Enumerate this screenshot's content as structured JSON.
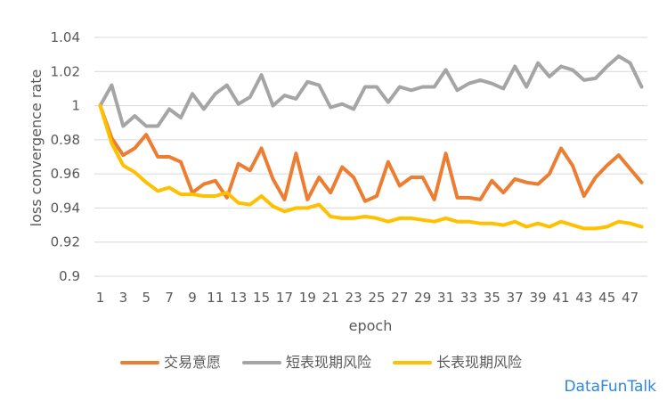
{
  "chart_data": {
    "type": "line",
    "xlabel": "epoch",
    "ylabel": "loss convergence rate",
    "ylim": [
      0.9,
      1.04
    ],
    "yticks": [
      "0.9",
      "0.92",
      "0.94",
      "0.96",
      "0.98",
      "1",
      "1.02",
      "1.04"
    ],
    "x": [
      1,
      2,
      3,
      4,
      5,
      6,
      7,
      8,
      9,
      10,
      11,
      12,
      13,
      14,
      15,
      16,
      17,
      18,
      19,
      20,
      21,
      22,
      23,
      24,
      25,
      26,
      27,
      28,
      29,
      30,
      31,
      32,
      33,
      34,
      35,
      36,
      37,
      38,
      39,
      40,
      41,
      42,
      43,
      44,
      45,
      46,
      47,
      48
    ],
    "xtick_labels": [
      "1",
      "3",
      "5",
      "7",
      "9",
      "11",
      "13",
      "15",
      "17",
      "19",
      "21",
      "23",
      "25",
      "27",
      "29",
      "31",
      "33",
      "35",
      "37",
      "39",
      "41",
      "43",
      "45",
      "47"
    ],
    "grid": true,
    "legend_position": "bottom",
    "series": [
      {
        "name": "交易意愿",
        "color": "#ed7d31",
        "values": [
          1.0,
          0.981,
          0.971,
          0.975,
          0.983,
          0.97,
          0.97,
          0.967,
          0.949,
          0.954,
          0.956,
          0.946,
          0.966,
          0.962,
          0.975,
          0.957,
          0.945,
          0.972,
          0.945,
          0.958,
          0.949,
          0.964,
          0.958,
          0.944,
          0.947,
          0.967,
          0.953,
          0.958,
          0.958,
          0.945,
          0.972,
          0.946,
          0.946,
          0.945,
          0.956,
          0.949,
          0.957,
          0.955,
          0.954,
          0.96,
          0.975,
          0.965,
          0.947,
          0.958,
          0.965,
          0.971,
          0.963,
          0.955
        ]
      },
      {
        "name": "短表现期风险",
        "color": "#a5a5a5",
        "values": [
          1.0,
          1.012,
          0.988,
          0.994,
          0.988,
          0.988,
          0.998,
          0.993,
          1.007,
          0.998,
          1.007,
          1.012,
          1.001,
          1.005,
          1.018,
          1.0,
          1.006,
          1.004,
          1.014,
          1.012,
          0.999,
          1.001,
          0.998,
          1.011,
          1.011,
          1.002,
          1.011,
          1.009,
          1.011,
          1.011,
          1.021,
          1.009,
          1.013,
          1.015,
          1.013,
          1.01,
          1.023,
          1.011,
          1.025,
          1.017,
          1.023,
          1.021,
          1.015,
          1.016,
          1.023,
          1.029,
          1.025,
          1.011
        ]
      },
      {
        "name": "长表现期风险",
        "color": "#ffc000",
        "values": [
          1.0,
          0.978,
          0.965,
          0.961,
          0.955,
          0.95,
          0.952,
          0.948,
          0.948,
          0.947,
          0.947,
          0.949,
          0.943,
          0.942,
          0.947,
          0.941,
          0.938,
          0.94,
          0.94,
          0.942,
          0.935,
          0.934,
          0.934,
          0.935,
          0.934,
          0.932,
          0.934,
          0.934,
          0.933,
          0.932,
          0.934,
          0.932,
          0.932,
          0.931,
          0.931,
          0.93,
          0.932,
          0.929,
          0.931,
          0.929,
          0.932,
          0.93,
          0.928,
          0.928,
          0.929,
          0.932,
          0.931,
          0.929
        ]
      }
    ]
  },
  "watermark": "DataFunTalk"
}
